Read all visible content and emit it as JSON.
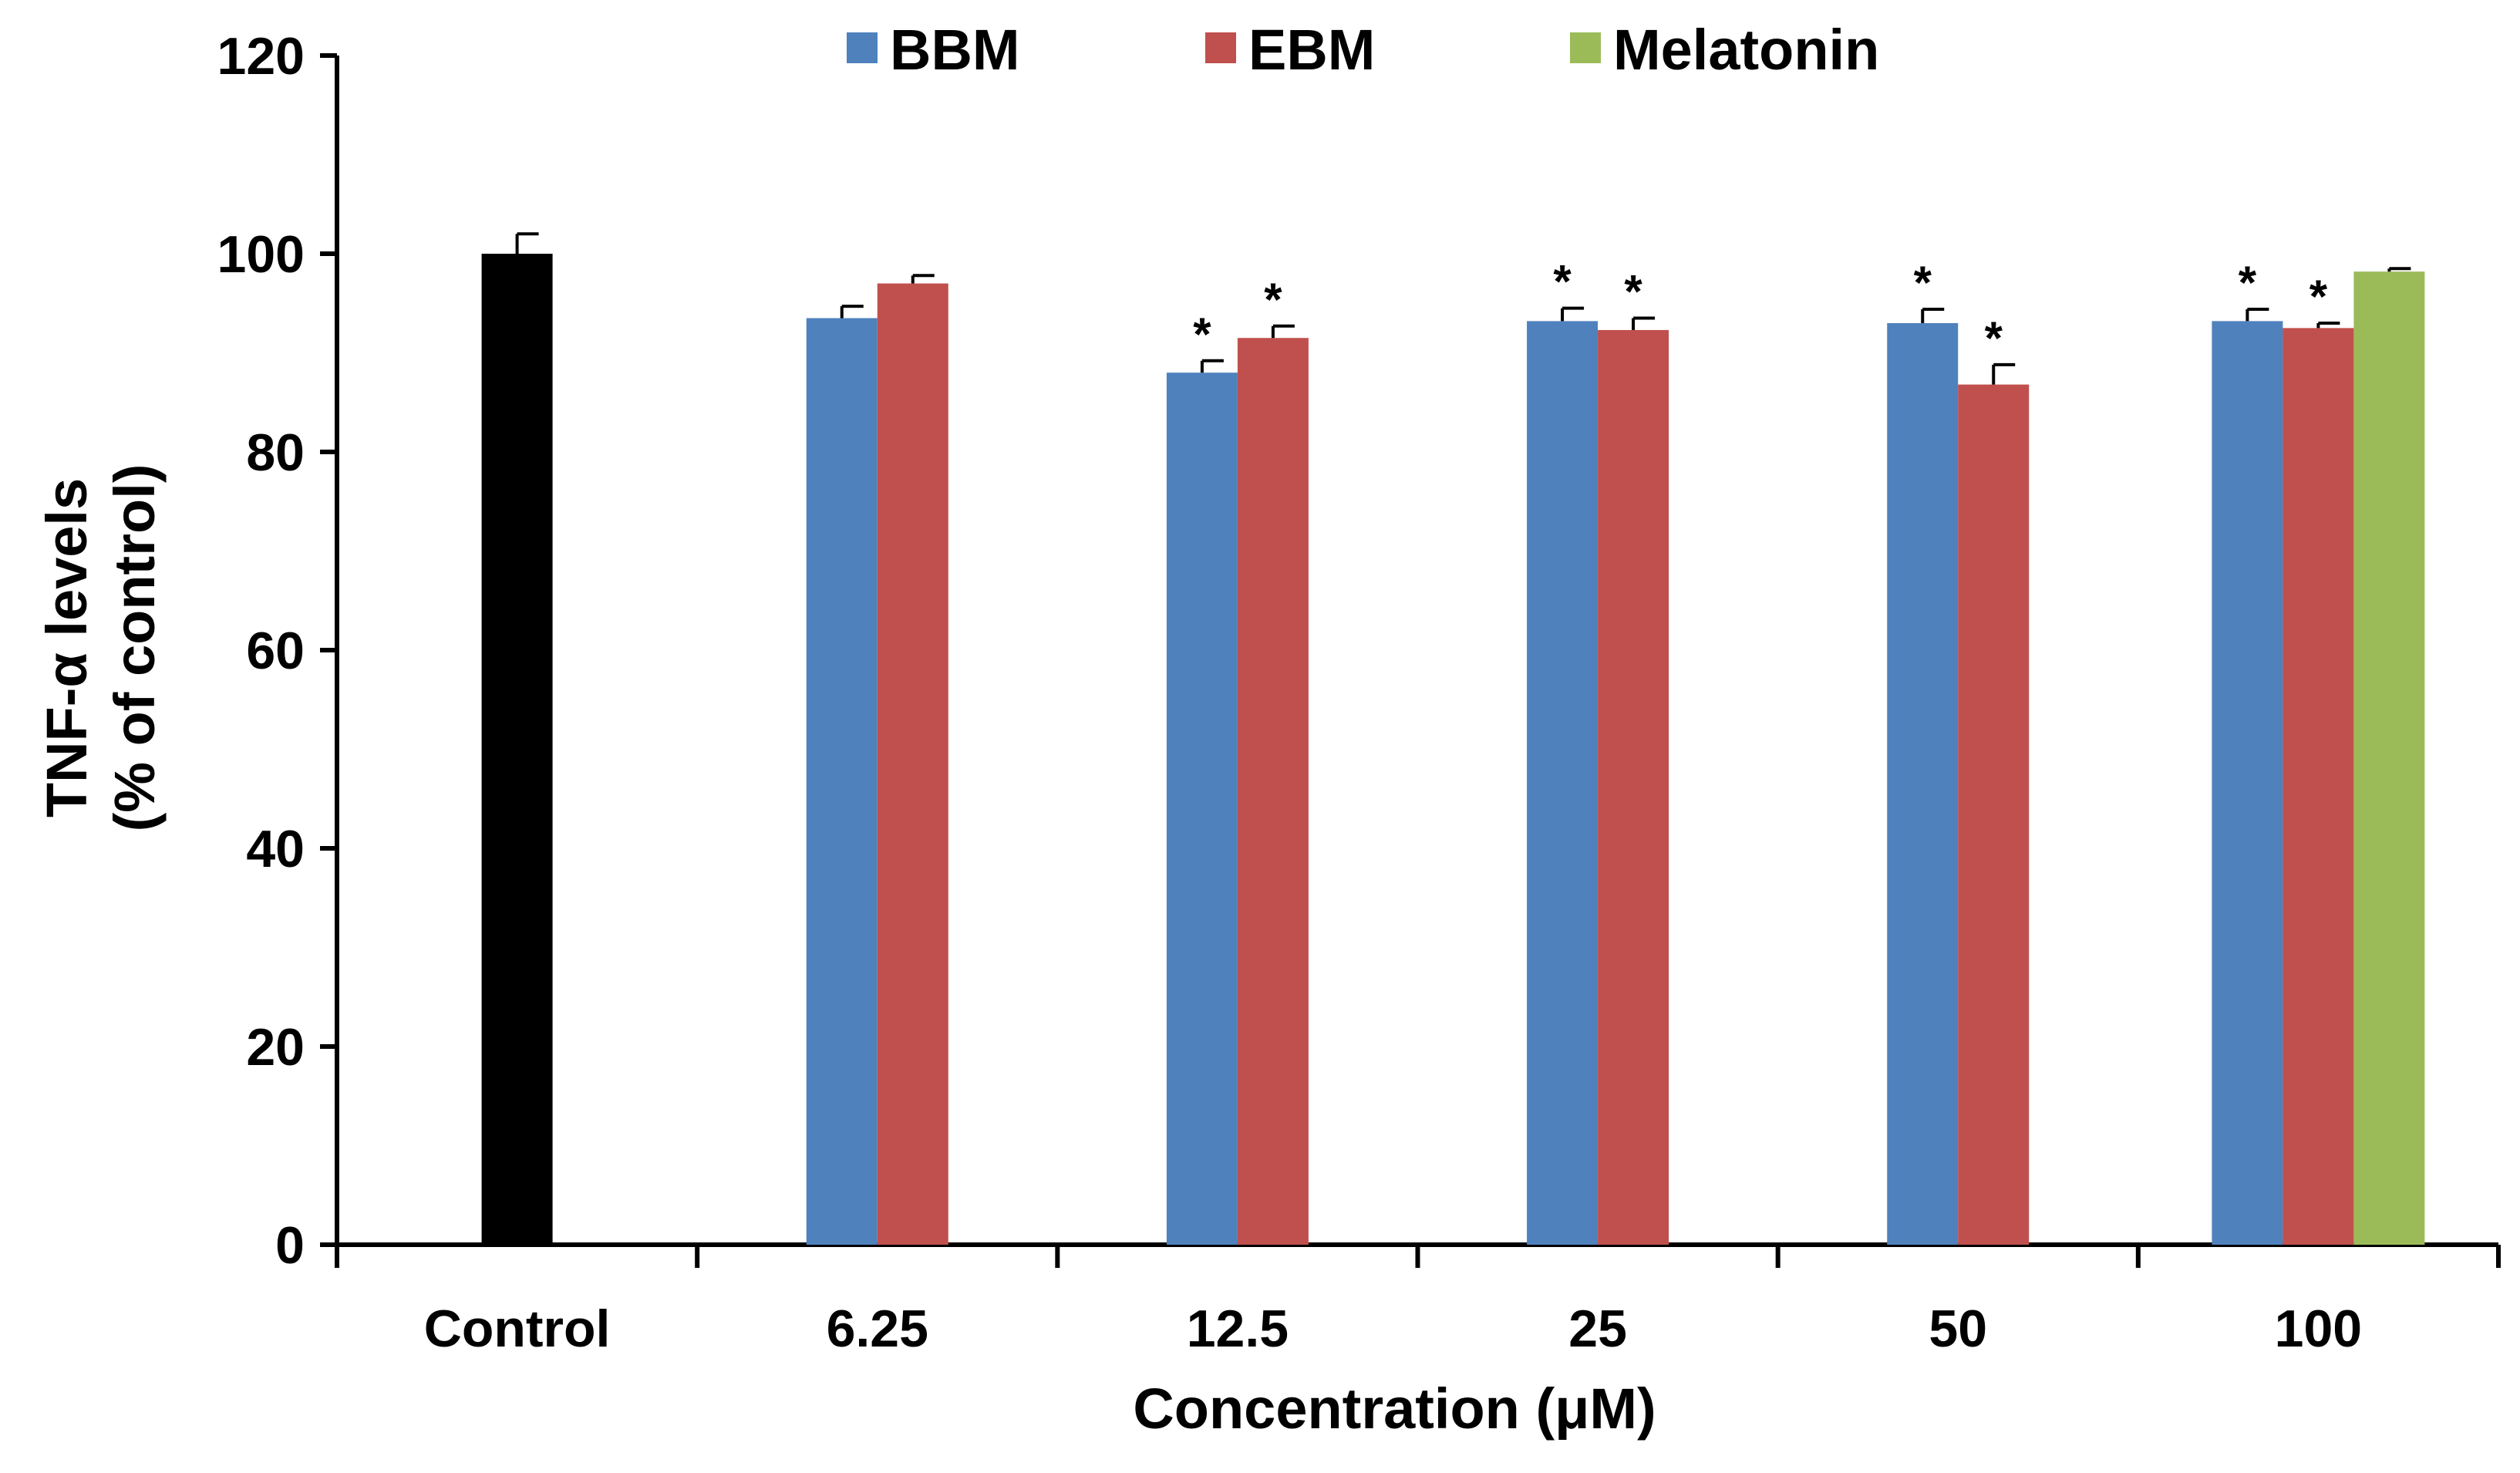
{
  "chart_data": {
    "type": "bar",
    "title": "",
    "xlabel": "Concentration (μM)",
    "ylabel_lines": [
      "TNF-α levels",
      "(% of control)"
    ],
    "ylim": [
      0,
      120
    ],
    "yticks": [
      0,
      20,
      40,
      60,
      80,
      100,
      120
    ],
    "categories": [
      "Control",
      "6.25",
      "12.5",
      "25",
      "50",
      "100"
    ],
    "control": {
      "name": "Control",
      "value": 100,
      "error": 2.0,
      "color": "#000000"
    },
    "series": [
      {
        "name": "BBM",
        "color": "#4f81bd",
        "values": [
          null,
          93.5,
          88.0,
          93.2,
          93.0,
          93.2
        ],
        "errors": [
          null,
          1.2,
          1.2,
          1.3,
          1.4,
          1.2
        ],
        "significant": [
          false,
          false,
          true,
          true,
          true,
          true
        ]
      },
      {
        "name": "EBM",
        "color": "#c0504d",
        "values": [
          null,
          97.0,
          91.5,
          92.3,
          86.8,
          92.5
        ],
        "errors": [
          null,
          0.8,
          1.2,
          1.2,
          2.0,
          0.5
        ],
        "significant": [
          false,
          false,
          true,
          true,
          true,
          true
        ]
      },
      {
        "name": "Melatonin",
        "color": "#9bbb59",
        "values": [
          null,
          null,
          null,
          null,
          null,
          98.2
        ],
        "errors": [
          null,
          null,
          null,
          null,
          null,
          0.3
        ],
        "significant": [
          false,
          false,
          false,
          false,
          false,
          false
        ]
      }
    ],
    "significance_marker": "*",
    "legend_position": "top"
  }
}
